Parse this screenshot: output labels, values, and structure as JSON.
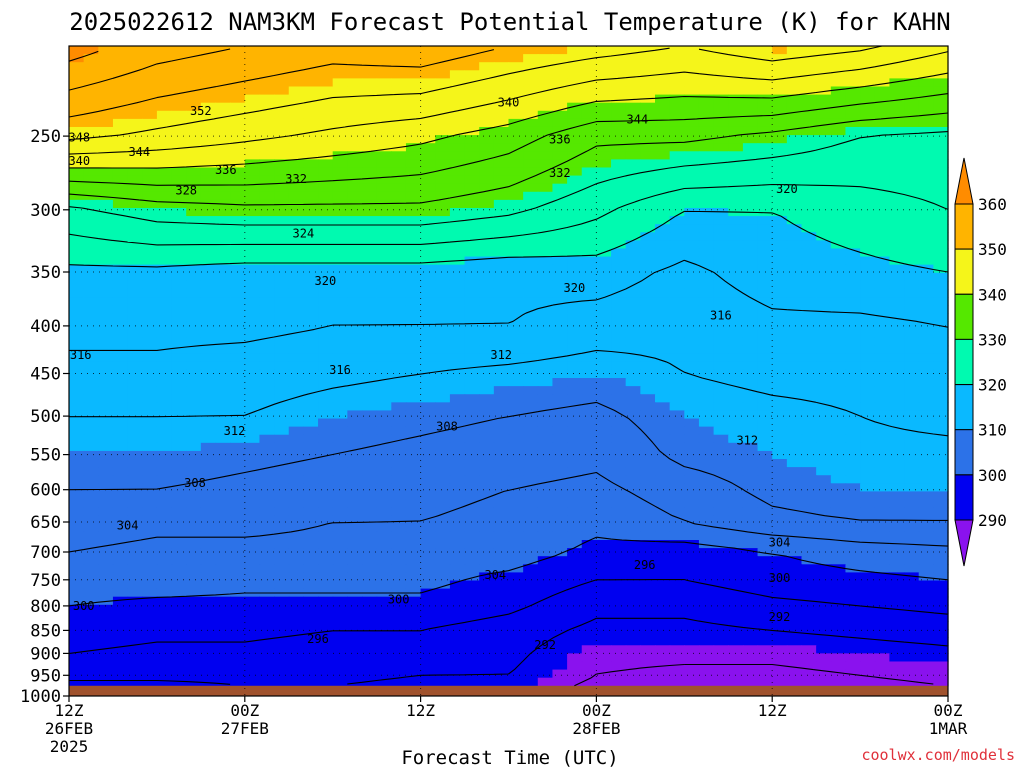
{
  "title": "2025022612 NAM3KM Forecast Potential Temperature (K) for KAHN",
  "xlabel": "Forecast Time (UTC)",
  "credit": "coolwx.com/models",
  "colors": {
    "fill_levels": [
      "#8a12ee",
      "#0000f0",
      "#2c72e8",
      "#0ab9ff",
      "#00fab0",
      "#55e800",
      "#f5f51a",
      "#ffb400",
      "#ff8c00"
    ],
    "ground": "#a0522d",
    "contour": "#000000"
  },
  "colorbar": {
    "labels": [
      "360",
      "350",
      "340",
      "330",
      "320",
      "310",
      "300",
      "290"
    ]
  },
  "chart_data": {
    "type": "heatmap",
    "title": "2025022612 NAM3KM Forecast Potential Temperature (K) for KAHN",
    "xlabel": "Forecast Time (UTC)",
    "ylabel": "",
    "x": [
      0,
      6,
      12,
      18,
      24,
      30,
      36,
      42,
      48,
      54,
      60
    ],
    "x_unit": "forecast hours after 2025-02-26 12Z",
    "x_ticks": [
      {
        "h": 0,
        "line1": "12Z",
        "line2": "26FEB",
        "line3": "2025"
      },
      {
        "h": 12,
        "line1": "00Z",
        "line2": "27FEB",
        "line3": ""
      },
      {
        "h": 24,
        "line1": "12Z",
        "line2": "",
        "line3": ""
      },
      {
        "h": 36,
        "line1": "00Z",
        "line2": "28FEB",
        "line3": ""
      },
      {
        "h": 48,
        "line1": "12Z",
        "line2": "",
        "line3": ""
      },
      {
        "h": 60,
        "line1": "00Z",
        "line2": "1MAR",
        "line3": ""
      }
    ],
    "y_ticks": [
      "250",
      "300",
      "350",
      "400",
      "450",
      "500",
      "550",
      "600",
      "650",
      "700",
      "750",
      "800",
      "850",
      "900",
      "950",
      "1000"
    ],
    "y_scale": "log",
    "ylim": [
      200,
      1000
    ],
    "ground_level": 975,
    "grid": true,
    "colorbar_levels": [
      290,
      300,
      310,
      320,
      330,
      340,
      350,
      360
    ],
    "contour_interval": 4,
    "levels": [
      200,
      250,
      300,
      350,
      400,
      450,
      500,
      550,
      600,
      650,
      700,
      750,
      800,
      850,
      900,
      950,
      975
    ],
    "theta": [
      [
        362,
        358,
        356,
        354,
        355,
        352,
        350,
        348,
        351,
        349,
        345
      ],
      [
        349,
        347,
        345,
        343,
        341,
        338,
        333,
        333,
        331,
        328,
        327
      ],
      [
        327,
        330,
        331,
        331,
        331,
        329,
        325,
        320,
        320,
        322,
        324
      ],
      [
        319,
        319,
        318,
        318,
        318,
        317,
        318,
        315,
        318,
        319,
        320
      ],
      [
        317,
        317,
        317,
        316,
        316,
        316,
        314,
        313,
        315,
        315,
        316
      ],
      [
        315,
        315,
        314,
        313,
        312,
        311,
        310,
        312,
        313,
        313,
        314
      ],
      [
        312,
        312,
        312,
        310,
        309,
        308,
        307,
        310,
        311,
        312,
        313
      ],
      [
        310,
        310,
        309,
        308,
        307,
        306,
        305,
        309,
        310,
        311,
        311
      ],
      [
        308,
        308,
        307,
        306,
        305,
        304,
        303,
        306,
        309,
        310,
        310
      ],
      [
        306,
        305,
        305,
        304,
        304,
        303,
        301,
        304,
        307,
        308,
        308
      ],
      [
        304,
        303,
        303,
        303,
        302,
        302,
        299,
        298,
        300,
        302,
        303
      ],
      [
        302,
        302,
        301,
        301,
        301,
        299,
        296,
        296,
        298,
        299,
        300
      ],
      [
        300,
        299,
        299,
        299,
        299,
        297,
        293,
        293,
        295,
        296,
        297
      ],
      [
        298,
        297,
        297,
        296,
        296,
        294,
        291,
        291,
        292,
        293,
        294
      ],
      [
        296,
        295,
        295,
        294,
        294,
        293,
        289,
        289,
        289,
        290,
        291
      ],
      [
        293,
        293,
        293,
        293,
        292,
        292,
        288,
        287,
        287,
        288,
        289
      ],
      [
        291,
        291,
        292,
        292,
        291,
        291,
        287,
        286,
        286,
        287,
        288
      ]
    ],
    "contour_labels": [
      {
        "value": "352",
        "h": 9,
        "p": 235
      },
      {
        "value": "348",
        "h": 0.7,
        "p": 251
      },
      {
        "value": "344",
        "h": 4.8,
        "p": 260
      },
      {
        "value": "340",
        "h": 0.7,
        "p": 266
      },
      {
        "value": "336",
        "h": 10.7,
        "p": 272
      },
      {
        "value": "332",
        "h": 15.5,
        "p": 278
      },
      {
        "value": "328",
        "h": 8,
        "p": 286
      },
      {
        "value": "324",
        "h": 16,
        "p": 318
      },
      {
        "value": "320",
        "h": 17.5,
        "p": 358
      },
      {
        "value": "340",
        "h": 30,
        "p": 230
      },
      {
        "value": "336",
        "h": 33.5,
        "p": 252
      },
      {
        "value": "332",
        "h": 33.5,
        "p": 274
      },
      {
        "value": "344",
        "h": 38.8,
        "p": 240
      },
      {
        "value": "320",
        "h": 49,
        "p": 285
      },
      {
        "value": "320",
        "h": 34.5,
        "p": 364
      },
      {
        "value": "316",
        "h": 0.8,
        "p": 430
      },
      {
        "value": "316",
        "h": 18.5,
        "p": 446
      },
      {
        "value": "312",
        "h": 29.5,
        "p": 430
      },
      {
        "value": "316",
        "h": 44.5,
        "p": 390
      },
      {
        "value": "312",
        "h": 11.3,
        "p": 519
      },
      {
        "value": "308",
        "h": 25.8,
        "p": 513
      },
      {
        "value": "312",
        "h": 46.3,
        "p": 531
      },
      {
        "value": "308",
        "h": 8.6,
        "p": 590
      },
      {
        "value": "304",
        "h": 4,
        "p": 656
      },
      {
        "value": "304",
        "h": 29.1,
        "p": 741
      },
      {
        "value": "304",
        "h": 48.5,
        "p": 684
      },
      {
        "value": "300",
        "h": 1,
        "p": 800
      },
      {
        "value": "300",
        "h": 22.5,
        "p": 787
      },
      {
        "value": "300",
        "h": 48.5,
        "p": 747
      },
      {
        "value": "296",
        "h": 17,
        "p": 868
      },
      {
        "value": "292",
        "h": 32.5,
        "p": 881
      },
      {
        "value": "296",
        "h": 39.3,
        "p": 723
      },
      {
        "value": "292",
        "h": 48.5,
        "p": 822
      }
    ]
  }
}
